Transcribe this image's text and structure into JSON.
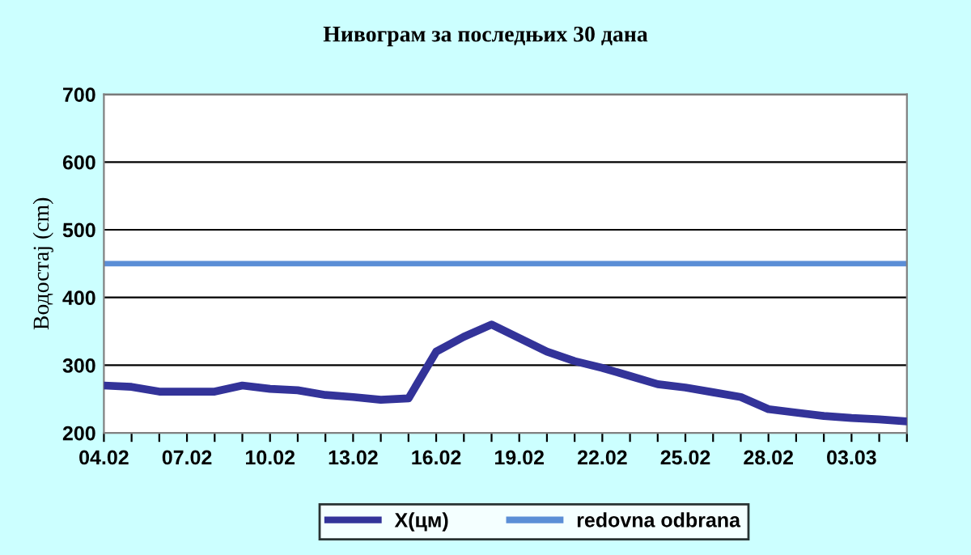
{
  "chart_data": {
    "type": "line",
    "title": "Нивограм за последњих 30 дана",
    "ylabel": "Водостај (cm)",
    "categories": [
      "04.02",
      null,
      null,
      "07.02",
      null,
      null,
      "10.02",
      null,
      null,
      "13.02",
      null,
      null,
      "16.02",
      null,
      null,
      "19.02",
      null,
      null,
      "22.02",
      null,
      null,
      "25.02",
      null,
      null,
      "28.02",
      null,
      null,
      "03.03",
      null,
      null
    ],
    "series": [
      {
        "name": "X(цм)",
        "color": "#333399",
        "values": [
          270,
          268,
          261,
          261,
          261,
          270,
          265,
          263,
          256,
          253,
          249,
          251,
          320,
          342,
          360,
          340,
          320,
          306,
          296,
          284,
          272,
          267,
          260,
          253,
          235,
          230,
          225,
          222,
          220,
          217
        ]
      }
    ],
    "ref_lines": [
      {
        "axis": "y",
        "value": 450,
        "label": "redovna odbrana",
        "color": "#5b8ed6"
      }
    ],
    "ylim": [
      200,
      700
    ],
    "yticks": [
      200,
      300,
      400,
      500,
      600,
      700
    ],
    "grid": "y",
    "legend": "bottom",
    "marker": "none",
    "line_style": "solid"
  }
}
